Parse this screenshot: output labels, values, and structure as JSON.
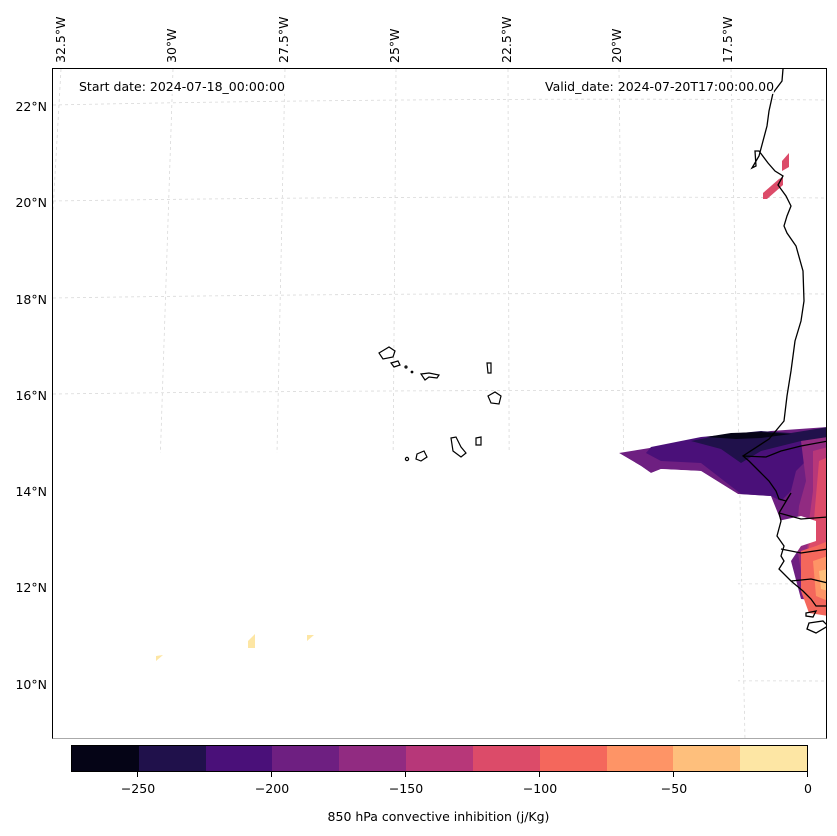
{
  "map": {
    "start_date": "Start date: 2024-07-18_00:00:00",
    "valid_date": "Valid_date: 2024-07-20T17:00:00.00",
    "lon_labels": [
      "32.5°W",
      "30°W",
      "27.5°W",
      "25°W",
      "22.5°W",
      "20°W",
      "17.5°W"
    ],
    "lat_labels": [
      "22°N",
      "20°N",
      "18°N",
      "16°N",
      "14°N",
      "12°N",
      "10°N"
    ],
    "lon_range": [
      -33.0,
      -15.8
    ],
    "lat_range": [
      8.9,
      22.8
    ],
    "gridlines": true,
    "features": [
      "Cape Verde islands coastline",
      "West African coastline (Mauritania, Senegal, Gambia, Guinea-Bissau)"
    ]
  },
  "colorbar": {
    "label": "850 hPa convective inhibition (j/Kg)",
    "range": [
      -275,
      0
    ],
    "levels": [
      -275,
      -250,
      -225,
      -200,
      -175,
      -150,
      -125,
      -100,
      -75,
      -50,
      -25,
      0
    ],
    "colors": [
      "#050416",
      "#20114b",
      "#4a1079",
      "#6e1f81",
      "#912b81",
      "#b73779",
      "#dc4b69",
      "#f4675c",
      "#fe9466",
      "#febf7c",
      "#fde6a4"
    ],
    "tick_labels": [
      "−250",
      "−200",
      "−150",
      "−100",
      "−50",
      "0"
    ],
    "tick_values": [
      -250,
      -200,
      -150,
      -100,
      -50,
      0
    ]
  }
}
